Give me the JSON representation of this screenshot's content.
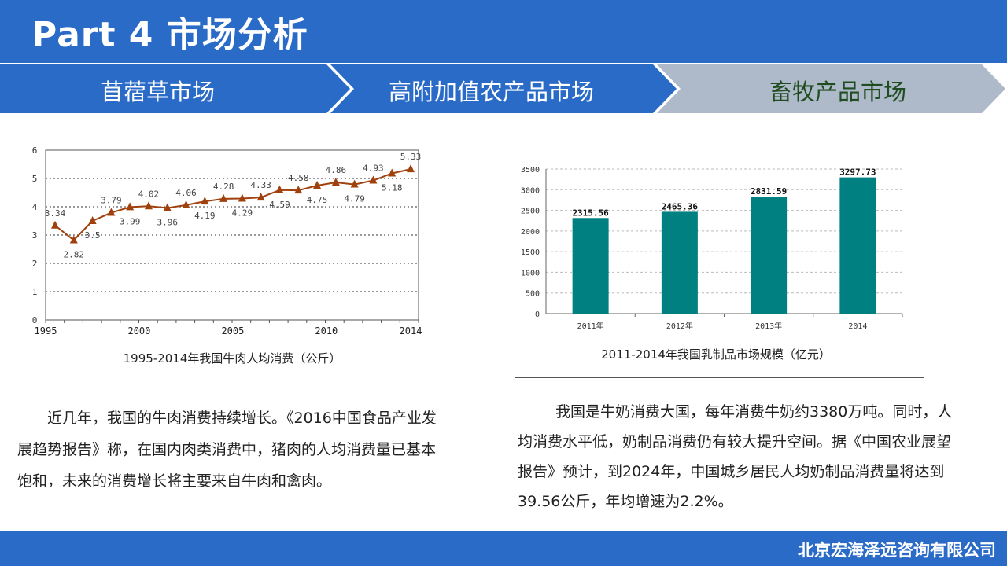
{
  "header": {
    "title": "Part 4  市场分析"
  },
  "tabs": [
    {
      "label": "苜蓿草市场"
    },
    {
      "label": "高附加值农产品市场"
    },
    {
      "label": "畜牧产品市场"
    }
  ],
  "colors": {
    "primary": "#2a6bc7",
    "active_tab": "#aeb9c9",
    "line": "#a0410d",
    "bar": "#008080"
  },
  "left": {
    "caption": "1995-2014年我国牛肉人均消费（公斤）",
    "paragraph": "近几年，我国的牛肉消费持续增长。《2016中国食品产业发展趋势报告》称，在国内肉类消费中，猪肉的人均消费量已基本饱和，未来的消费增长将主要来自牛肉和禽肉。"
  },
  "right": {
    "caption": "2011-2014年我国乳制品市场规模（亿元）",
    "paragraph": "我国是牛奶消费大国，每年消费牛奶约3380万吨。同时，人均消费水平低，奶制品消费仍有较大提升空间。据《中国农业展望报告》预计，到2024年，中国城乡居民人均奶制品消费量将达到39.56公斤，年均增速为2.2%。"
  },
  "footer": {
    "company": "北京宏海泽远咨询有限公司"
  },
  "chart_data": [
    {
      "type": "line",
      "title": "1995-2014年我国牛肉人均消费（公斤）",
      "x": [
        1995,
        1996,
        1997,
        1998,
        1999,
        2000,
        2001,
        2002,
        2003,
        2004,
        2005,
        2006,
        2007,
        2008,
        2009,
        2010,
        2011,
        2012,
        2013,
        2014
      ],
      "values": [
        3.34,
        2.82,
        3.5,
        3.79,
        3.99,
        4.02,
        3.96,
        4.06,
        4.19,
        4.28,
        4.29,
        4.33,
        4.59,
        4.58,
        4.75,
        4.86,
        4.79,
        4.93,
        5.18,
        5.33
      ],
      "labels": [
        "3.34",
        "2.82",
        "3.5",
        "3.79",
        "3.99",
        "4.02",
        "3.96",
        "4.06",
        "4.19",
        "4.28",
        "4.29",
        "4.33",
        "4.59",
        "4.58",
        "4.75",
        "4.86",
        "4.79",
        "4.93",
        "5.18",
        "5.33"
      ],
      "xticks": [
        "1995",
        "2000",
        "2005",
        "2010",
        "2014"
      ],
      "yticks": [
        "0",
        "1",
        "2",
        "3",
        "4",
        "5",
        "6"
      ],
      "ylim": [
        0,
        6
      ],
      "grid": true
    },
    {
      "type": "bar",
      "title": "2011-2014年我国乳制品市场规模（亿元）",
      "categories": [
        "2011年",
        "2012年",
        "2013年",
        "2014"
      ],
      "values": [
        2315.56,
        2465.36,
        2831.59,
        3297.73
      ],
      "labels": [
        "2315.56",
        "2465.36",
        "2831.59",
        "3297.73"
      ],
      "yticks": [
        "0",
        "500",
        "1000",
        "1500",
        "2000",
        "2500",
        "3000",
        "3500"
      ],
      "ylim": [
        0,
        3500
      ],
      "grid": true
    }
  ]
}
